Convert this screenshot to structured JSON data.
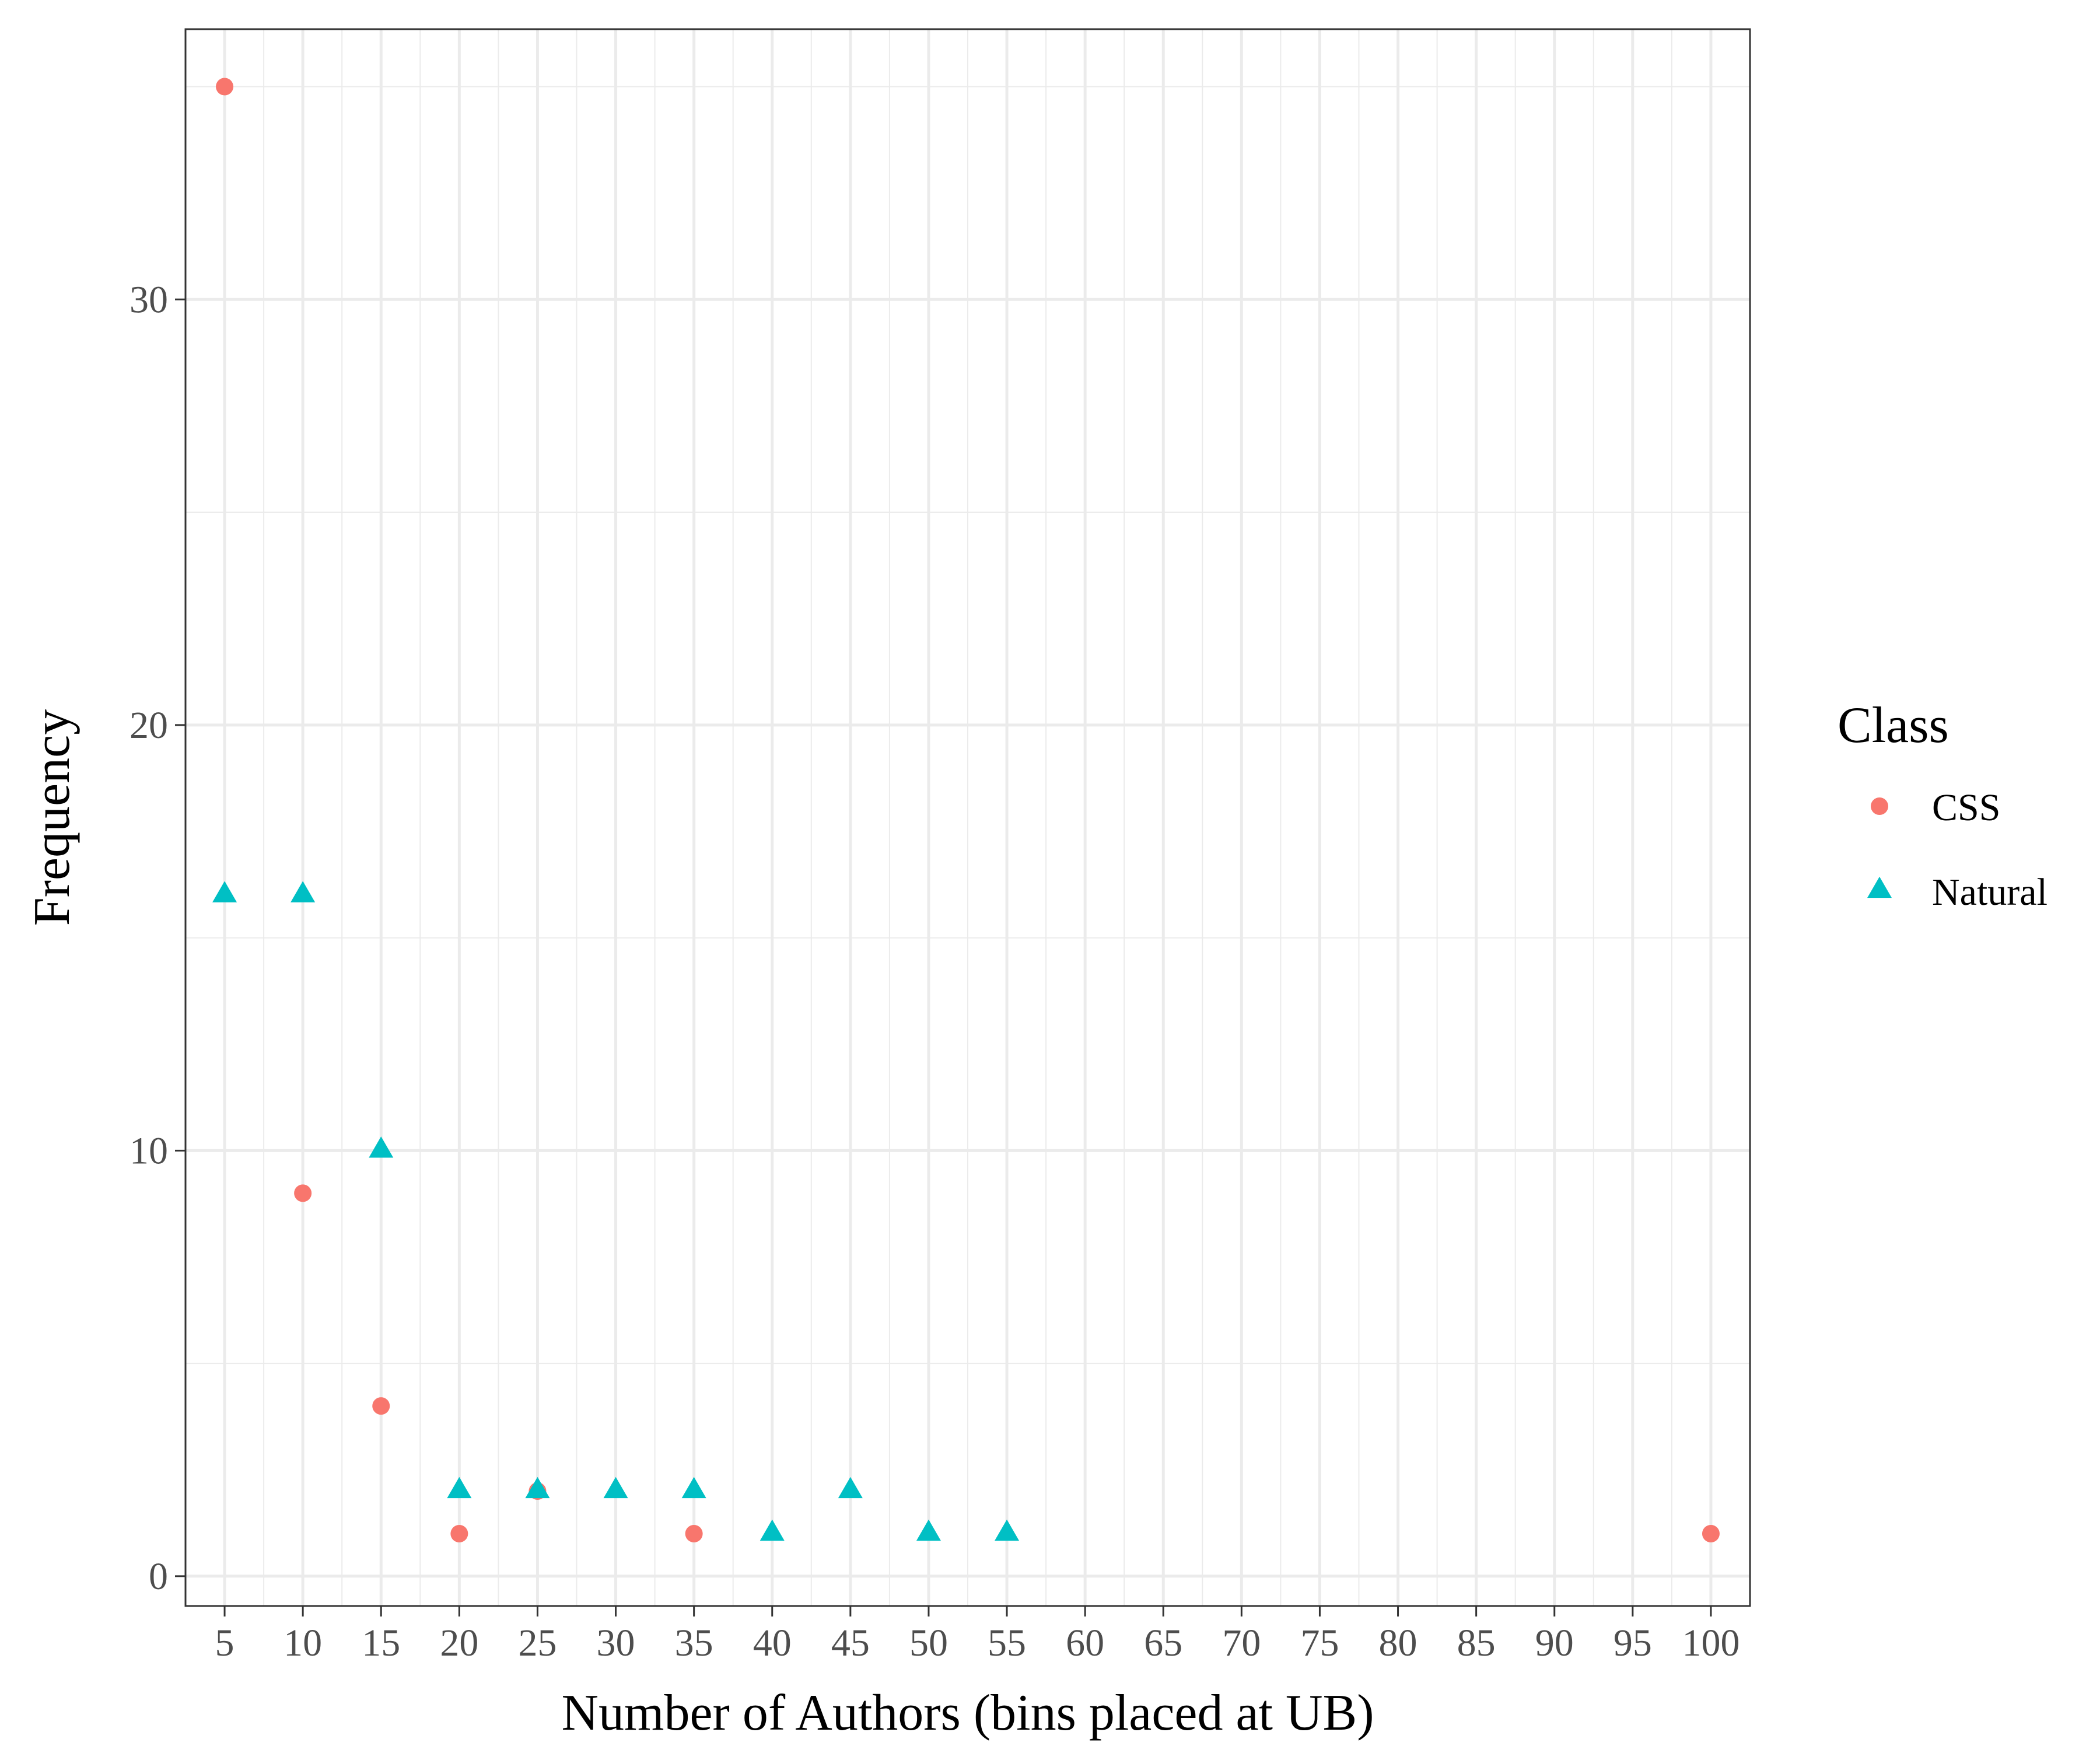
{
  "chart_data": {
    "type": "scatter",
    "title": "",
    "xlabel": "Number of Authors (bins placed at UB)",
    "ylabel": "Frequency",
    "x_ticks": [
      5,
      10,
      15,
      20,
      25,
      30,
      35,
      40,
      45,
      50,
      55,
      60,
      65,
      70,
      75,
      80,
      85,
      90,
      95,
      100
    ],
    "y_ticks": [
      0,
      10,
      20,
      30
    ],
    "xlim": [
      2.5,
      102.5
    ],
    "ylim": [
      -0.7,
      36.35
    ],
    "grid": true,
    "legend": {
      "title": "Class",
      "position": "right"
    },
    "series": [
      {
        "name": "CSS",
        "marker": "circle",
        "color": "#F8766D",
        "points": [
          {
            "x": 5,
            "y": 35
          },
          {
            "x": 10,
            "y": 9
          },
          {
            "x": 15,
            "y": 4
          },
          {
            "x": 20,
            "y": 1
          },
          {
            "x": 25,
            "y": 2
          },
          {
            "x": 35,
            "y": 1
          },
          {
            "x": 100,
            "y": 1
          }
        ]
      },
      {
        "name": "Natural",
        "marker": "triangle",
        "color": "#00BFC4",
        "points": [
          {
            "x": 5,
            "y": 16
          },
          {
            "x": 10,
            "y": 16
          },
          {
            "x": 15,
            "y": 10
          },
          {
            "x": 20,
            "y": 2
          },
          {
            "x": 25,
            "y": 2
          },
          {
            "x": 30,
            "y": 2
          },
          {
            "x": 35,
            "y": 2
          },
          {
            "x": 40,
            "y": 1
          },
          {
            "x": 45,
            "y": 2
          },
          {
            "x": 50,
            "y": 1
          },
          {
            "x": 55,
            "y": 1
          }
        ]
      }
    ]
  }
}
